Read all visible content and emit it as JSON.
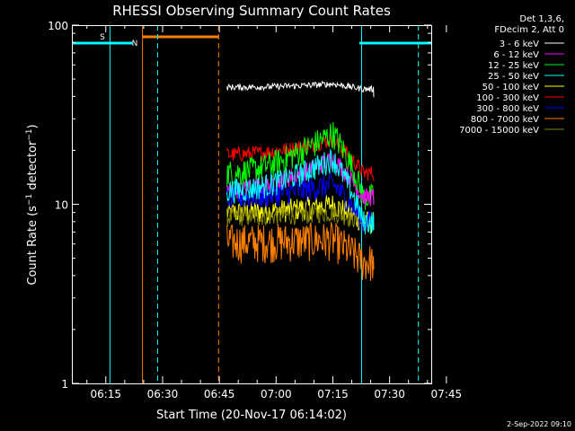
{
  "chart_data": {
    "type": "line",
    "title": "RHESSI Observing Summary Count Rates",
    "xlabel": "Start Time (20-Nov-17 06:14:02)",
    "ylabel": "Count Rate (s⁻¹ detector⁻¹)",
    "yscale": "log",
    "ylim": [
      1,
      100
    ],
    "xlim_minutes": [
      6.033,
      101.0
    ],
    "x_tick_labels": [
      "06:15",
      "06:30",
      "06:45",
      "07:00",
      "07:15",
      "07:30",
      "07:45"
    ],
    "x_tick_minutes": [
      15,
      30,
      45,
      60,
      75,
      90,
      105
    ],
    "y_tick_labels": [
      "1",
      "10",
      "100"
    ],
    "y_tick_values": [
      1,
      10,
      100
    ],
    "legend_header": [
      "Det 1,3,6,",
      "FDecim 2, Att 0"
    ],
    "legend_placement": "right, outside plot",
    "footer_date": "2-Sep-2022 09:10",
    "markers": [
      {
        "label": "S",
        "color": "#ff8000",
        "start": 6.0,
        "end": 44.8,
        "line_style": "solid-start dashed-end"
      },
      {
        "label": "N",
        "color": "#00ffff",
        "start": 6.0,
        "end": 28.7,
        "line_style": "solid-start dashed-end"
      }
    ],
    "cyan_top_bars": [
      [
        6.0,
        22.0
      ],
      [
        82.0,
        101.0
      ]
    ],
    "vertical_lines": [
      {
        "minute": 16.1,
        "color": "#00ffff",
        "style": "solid"
      },
      {
        "minute": 24.7,
        "color": "#ff8000",
        "style": "solid"
      },
      {
        "minute": 28.7,
        "color": "#00ffff",
        "style": "dashed"
      },
      {
        "minute": 44.8,
        "color": "#ff8000",
        "style": "dashed"
      },
      {
        "minute": 82.6,
        "color": "#00ffff",
        "style": "solid"
      },
      {
        "minute": 97.6,
        "color": "#00ffff",
        "style": "dashed"
      }
    ],
    "data_range_minutes": [
      47.0,
      85.8
    ],
    "series": [
      {
        "name": "3 - 6 keV",
        "color": "#ffffff",
        "approx_values": {
          "start": 45,
          "peak": 47,
          "end": 44
        }
      },
      {
        "name": "6 - 12 keV",
        "color": "#ff00ff",
        "approx_values": {
          "start": 12,
          "peak": 18,
          "end": 11
        }
      },
      {
        "name": "12 - 25 keV",
        "color": "#00ff00",
        "approx_values": {
          "start": 15,
          "peak": 25,
          "end": 11
        }
      },
      {
        "name": "25 - 50 keV",
        "color": "#00ffff",
        "approx_values": {
          "start": 12,
          "peak": 18,
          "end": 8
        }
      },
      {
        "name": "50 - 100 keV",
        "color": "#ffff00",
        "approx_values": {
          "start": 9,
          "peak": 10,
          "end": 8
        }
      },
      {
        "name": "100 - 300 keV",
        "color": "#ff0000",
        "approx_values": {
          "start": 19,
          "peak": 23,
          "end": 15
        }
      },
      {
        "name": "300 - 800 keV",
        "color": "#0000ff",
        "approx_values": {
          "start": 11,
          "peak": 13,
          "end": 8
        }
      },
      {
        "name": "800 - 7000 keV",
        "color": "#ff8000",
        "approx_values": {
          "start": 6.2,
          "peak": 6.4,
          "end": 4.8
        }
      },
      {
        "name": "7000 - 15000 keV",
        "color": "#808000",
        "approx_values": {
          "start": 8.5,
          "peak": 9,
          "end": 8
        }
      }
    ]
  }
}
